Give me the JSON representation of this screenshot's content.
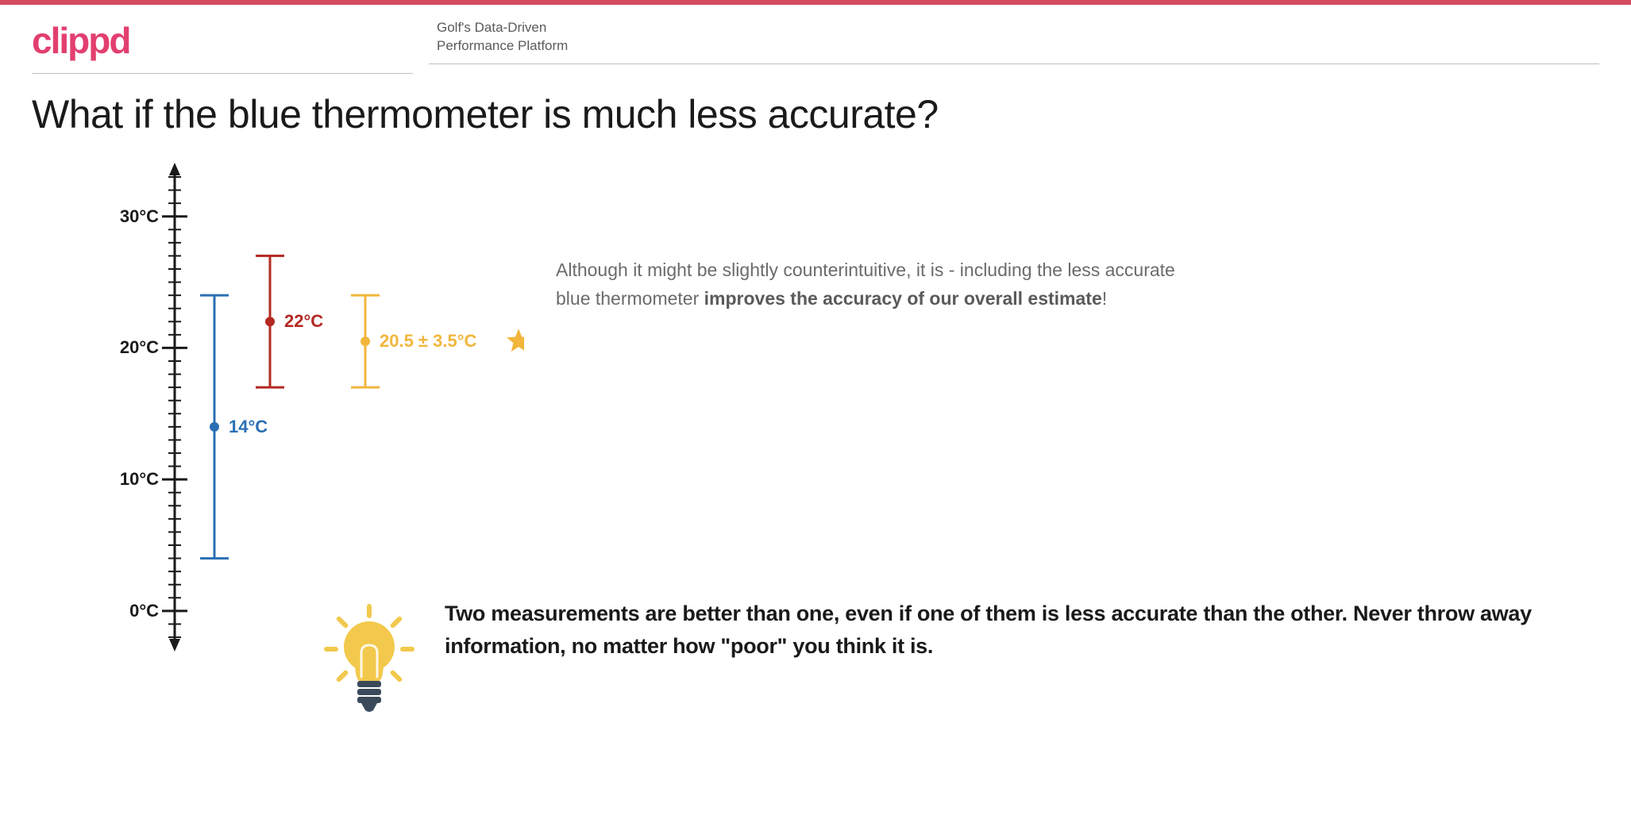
{
  "theme": {
    "topbar_color": "#d64a5e",
    "logo_color": "#e23f6f",
    "text_color": "#1a1a1a",
    "muted_text_color": "#6b6b6b",
    "axis_color": "#1a1a1a",
    "background_color": "#ffffff"
  },
  "header": {
    "logo": "clippd",
    "tagline_line1": "Golf's Data-Driven",
    "tagline_line2": "Performance Platform"
  },
  "title": "What if the blue thermometer is much less accurate?",
  "chart": {
    "type": "errorbar",
    "y_axis": {
      "min": -2,
      "max": 33,
      "tick_step_minor": 1,
      "labels": [
        {
          "value": 0,
          "text": "0°C"
        },
        {
          "value": 10,
          "text": "10°C"
        },
        {
          "value": 20,
          "text": "20°C"
        },
        {
          "value": 30,
          "text": "30°C"
        }
      ],
      "axis_stroke_width": 3,
      "minor_tick_len": 8,
      "major_tick_len": 16
    },
    "series": [
      {
        "id": "blue",
        "x_offset": 50,
        "mean": 14,
        "low": 4,
        "high": 24,
        "color": "#2b6fb3",
        "label": "14°C",
        "label_fontsize": 22
      },
      {
        "id": "red",
        "x_offset": 120,
        "mean": 22,
        "low": 17,
        "high": 27,
        "color": "#b32821",
        "label": "22°C",
        "label_fontsize": 22
      },
      {
        "id": "combined",
        "x_offset": 240,
        "mean": 20.5,
        "low": 17,
        "high": 24,
        "color": "#f2b63c",
        "label": "20.5 ± 3.5°C",
        "label_fontsize": 22,
        "star": true
      }
    ],
    "star_color": "#f2b63c",
    "errorbar_stroke_width": 3,
    "cap_width": 18,
    "dot_radius": 6
  },
  "explanation": {
    "pre": "Although it might be slightly counterintuitive, it is - including the less accurate blue thermometer ",
    "strong": "improves the accuracy of our overall estimate",
    "post": "!"
  },
  "insight": {
    "text": "Two measurements are better than one, even if one of them is less accurate than the other. Never throw away information, no matter how \"poor\" you think it is.",
    "bulb_color": "#f2c94c",
    "bulb_base_color": "#3b4a5a",
    "ray_color": "#f2c94c"
  }
}
